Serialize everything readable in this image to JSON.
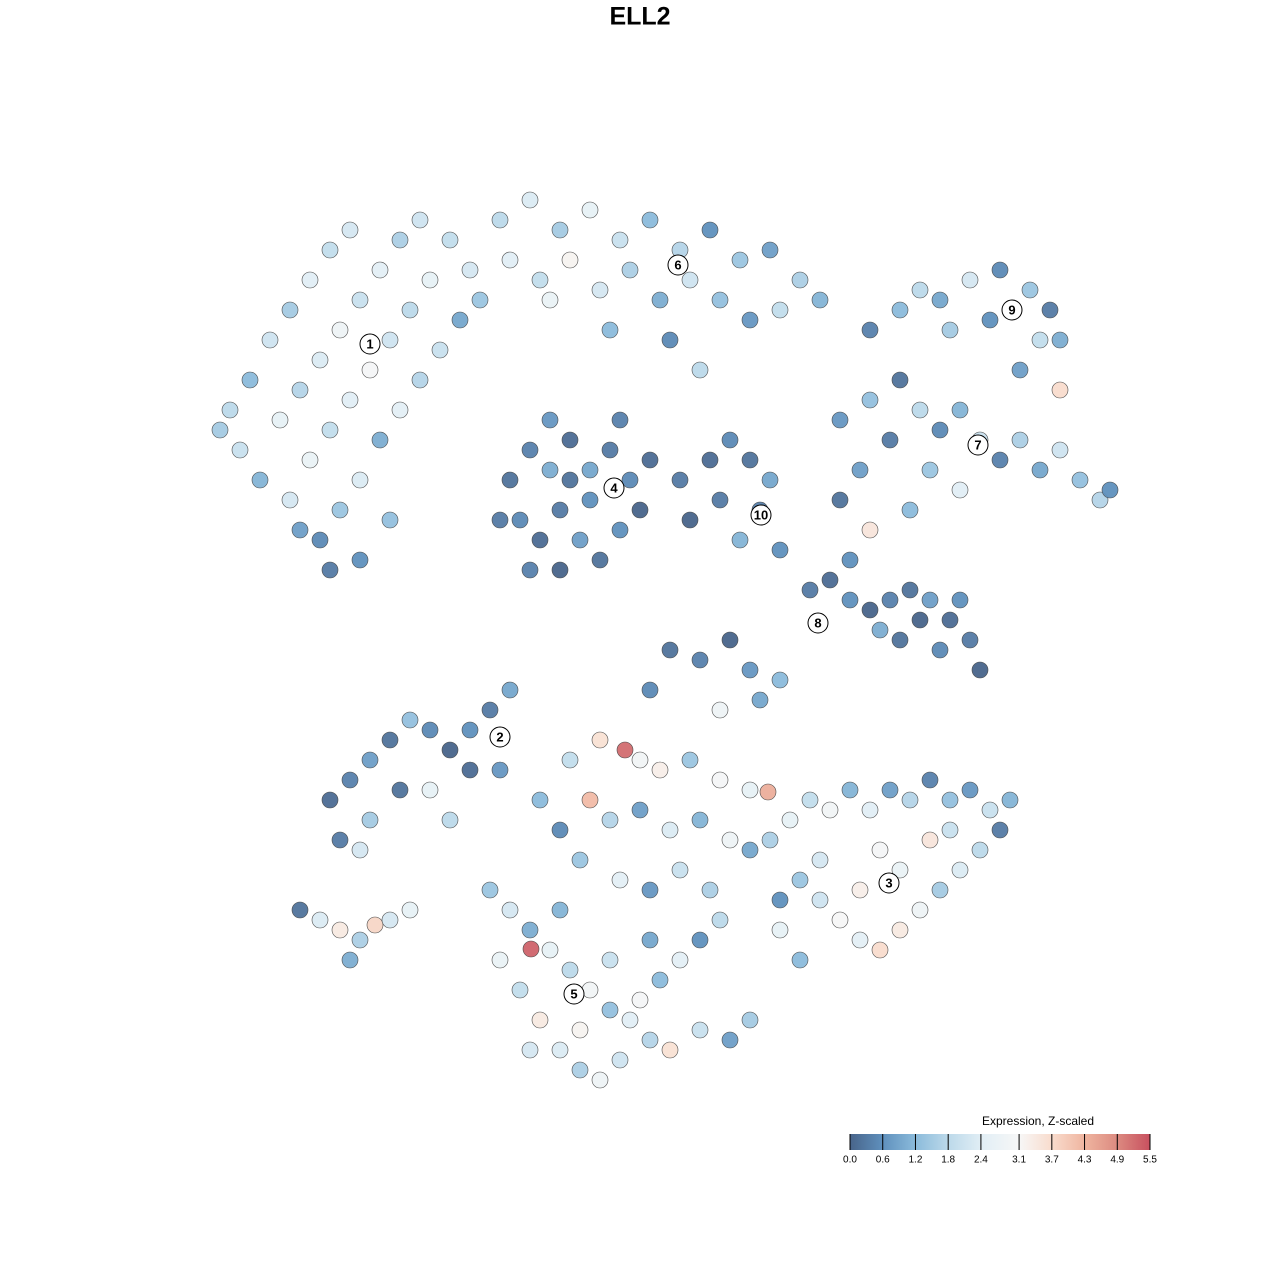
{
  "chart_data": {
    "type": "scatter",
    "title": "ELL2",
    "xlim": [
      0,
      100
    ],
    "ylim": [
      0,
      100
    ],
    "x": [
      3,
      5,
      7,
      9,
      11,
      13,
      15,
      4,
      8,
      10,
      12,
      14,
      16,
      18,
      20,
      6,
      9,
      11,
      13,
      15,
      17,
      19,
      21,
      23,
      12,
      14,
      16,
      18,
      20,
      22,
      24,
      26,
      13,
      16,
      19,
      10,
      2,
      27,
      25,
      22,
      30,
      33,
      36,
      39,
      42,
      45,
      48,
      51,
      54,
      57,
      60,
      62,
      31,
      34,
      37,
      40,
      43,
      46,
      49,
      52,
      55,
      58,
      35,
      28,
      47,
      41,
      50,
      31,
      33,
      35,
      37,
      39,
      41,
      43,
      44,
      42,
      40,
      38,
      36,
      34,
      32,
      33,
      36,
      39,
      37,
      42,
      45,
      30,
      35,
      48,
      51,
      53,
      55,
      57,
      56,
      54,
      58,
      49,
      52,
      67,
      70,
      72,
      74,
      77,
      80,
      83,
      85,
      86,
      84,
      79,
      75,
      82,
      86,
      64,
      67,
      70,
      72,
      74,
      76,
      78,
      80,
      82,
      84,
      86,
      88,
      90,
      91,
      73,
      69,
      66,
      76,
      71,
      67,
      65,
      64,
      61,
      63,
      65,
      67,
      69,
      71,
      73,
      75,
      77,
      78,
      74,
      70,
      72,
      76,
      68,
      47,
      50,
      53,
      55,
      58,
      45,
      52,
      56,
      13,
      15,
      17,
      19,
      21,
      23,
      25,
      27,
      29,
      31,
      20,
      23,
      17,
      14,
      16,
      25,
      27,
      30,
      10,
      12,
      14,
      16,
      17.5,
      19,
      21,
      15,
      57,
      59,
      61,
      63,
      65,
      67,
      69,
      71,
      73,
      75,
      77,
      79,
      81,
      80,
      78,
      76,
      74,
      72,
      70,
      68,
      66,
      64,
      62,
      60,
      58,
      66,
      70,
      68,
      62,
      73,
      75,
      60,
      58,
      29,
      31,
      33,
      35,
      37,
      39,
      41,
      43,
      45,
      47,
      50,
      53,
      55,
      30,
      32,
      34,
      36,
      38,
      40,
      42,
      44,
      46,
      48,
      50,
      52,
      33,
      38,
      41,
      45,
      36,
      37,
      40,
      42.5,
      44,
      46,
      49,
      52,
      55,
      56.8,
      39,
      41,
      44,
      47,
      50,
      53,
      55,
      38,
      42,
      45,
      48,
      51,
      36,
      34,
      33.1
    ],
    "y": [
      69,
      72,
      76,
      79,
      82,
      85,
      87,
      65,
      68,
      71,
      74,
      77,
      80,
      83,
      86,
      62,
      60,
      64,
      67,
      70,
      73,
      76,
      79,
      82,
      56,
      59,
      62,
      66,
      69,
      72,
      75,
      78,
      53,
      54,
      58,
      57,
      67,
      83,
      86,
      88,
      88,
      90,
      87,
      89,
      86,
      88,
      85,
      87,
      84,
      85,
      82,
      80,
      84,
      82,
      84,
      81,
      83,
      80,
      82,
      80,
      78,
      79,
      80,
      80,
      76,
      77,
      73,
      62,
      65,
      68,
      66,
      63,
      65,
      62,
      59,
      57,
      54,
      56,
      59,
      56,
      58,
      53,
      53,
      60,
      62,
      68,
      64,
      58,
      63,
      62,
      64,
      66,
      64,
      62,
      59,
      56,
      55,
      58,
      60,
      77,
      79,
      81,
      80,
      82,
      83,
      81,
      79,
      76,
      76,
      78,
      77,
      73,
      71,
      68,
      70,
      72,
      69,
      67,
      69,
      66,
      64,
      66,
      63,
      65,
      62,
      60,
      61,
      63,
      66,
      63,
      61,
      59,
      57,
      54,
      60,
      51,
      52,
      50,
      49,
      50,
      51,
      50,
      48,
      46,
      43,
      45,
      46,
      48,
      50,
      47,
      45,
      44,
      46,
      43,
      42,
      41,
      39,
      40,
      30,
      32,
      34,
      36,
      38,
      37,
      35,
      37,
      39,
      41,
      31,
      31,
      28,
      26,
      25,
      28,
      33,
      33,
      19,
      18,
      17,
      16,
      17.5,
      18,
      19,
      14,
      26,
      28,
      30,
      29,
      31,
      29,
      31,
      30,
      32,
      30,
      31,
      29,
      30,
      27,
      25,
      23,
      21,
      19,
      17,
      15,
      16,
      18,
      20,
      22,
      20,
      21,
      23,
      25,
      24,
      26,
      27,
      14,
      17,
      21,
      19,
      17,
      15,
      13,
      11,
      9,
      8,
      6,
      5,
      7,
      6,
      8,
      14,
      11,
      8,
      5,
      3,
      2,
      4,
      10,
      12,
      14,
      16,
      18,
      5,
      7,
      14,
      16,
      19,
      34,
      36,
      35,
      34,
      33,
      34,
      32,
      31,
      30.8,
      30,
      28,
      29,
      27,
      28,
      26,
      25,
      24,
      22,
      21,
      23,
      21,
      27,
      30,
      15.1
    ],
    "values": [
      1.8,
      1.2,
      2.1,
      1.5,
      2.4,
      1.9,
      2.2,
      2.0,
      2.6,
      1.7,
      2.3,
      2.8,
      2.0,
      2.5,
      1.6,
      1.1,
      2.2,
      2.7,
      1.9,
      2.4,
      3.0,
      2.1,
      1.8,
      2.6,
      0.5,
      1.4,
      2.3,
      1.0,
      2.5,
      1.7,
      2.0,
      0.9,
      0.3,
      0.6,
      1.3,
      0.8,
      1.5,
      2.2,
      1.9,
      2.1,
      1.8,
      2.3,
      1.5,
      2.6,
      2.0,
      1.2,
      1.7,
      0.6,
      1.4,
      0.8,
      1.6,
      1.1,
      2.4,
      1.9,
      3.2,
      2.2,
      1.6,
      1.0,
      2.1,
      1.3,
      0.7,
      1.9,
      2.7,
      1.4,
      0.5,
      1.2,
      1.8,
      0.2,
      0.4,
      0.7,
      0.1,
      0.9,
      0.3,
      0.5,
      0.0,
      0.6,
      0.2,
      0.8,
      0.3,
      0.1,
      0.5,
      0.4,
      0.0,
      0.6,
      0.2,
      0.4,
      0.1,
      0.3,
      1.0,
      0.3,
      0.1,
      0.5,
      0.2,
      0.9,
      0.4,
      1.1,
      0.6,
      0.0,
      0.3,
      0.4,
      1.2,
      1.8,
      0.9,
      2.2,
      0.5,
      1.4,
      0.3,
      1.0,
      1.9,
      0.6,
      1.5,
      0.8,
      3.7,
      0.7,
      1.3,
      0.2,
      1.8,
      0.5,
      1.1,
      2.0,
      0.4,
      1.6,
      0.9,
      2.1,
      1.3,
      1.7,
      0.6,
      1.4,
      0.3,
      0.8,
      2.4,
      1.2,
      3.5,
      0.6,
      0.2,
      0.3,
      0.1,
      0.6,
      0.0,
      0.4,
      0.2,
      0.8,
      0.1,
      0.3,
      0.0,
      0.5,
      0.2,
      0.0,
      0.6,
      1.0,
      0.2,
      0.4,
      0.0,
      0.7,
      1.2,
      0.5,
      2.8,
      0.9,
      0.1,
      0.4,
      0.8,
      0.2,
      1.3,
      0.5,
      0.0,
      0.6,
      0.3,
      0.9,
      0.2,
      2.6,
      1.5,
      0.3,
      2.2,
      1.8,
      0.1,
      0.7,
      0.2,
      2.3,
      3.4,
      1.6,
      3.8,
      2.2,
      2.6,
      1.0,
      1.6,
      2.6,
      1.9,
      2.9,
      1.1,
      2.4,
      0.8,
      1.7,
      0.4,
      1.3,
      0.7,
      2.0,
      1.1,
      0.3,
      1.8,
      2.3,
      1.5,
      2.8,
      3.4,
      3.7,
      2.5,
      3.1,
      2.1,
      1.4,
      0.6,
      3.3,
      2.7,
      3.0,
      2.2,
      3.5,
      2.0,
      1.2,
      2.6,
      1.4,
      2.2,
      1.0,
      2.6,
      1.8,
      2.9,
      1.3,
      2.4,
      1.7,
      3.6,
      2.0,
      0.8,
      1.5,
      2.7,
      1.9,
      3.4,
      2.3,
      1.6,
      2.8,
      2.1,
      3.0,
      1.2,
      2.5,
      0.6,
      1.8,
      2.2,
      3.2,
      2.0,
      0.9,
      1.1,
      1.9,
      3.6,
      5.2,
      2.9,
      3.3,
      1.4,
      3.0,
      2.6,
      4.4,
      4.2,
      1.7,
      0.8,
      2.3,
      1.1,
      2.8,
      0.9,
      1.4,
      2.5,
      0.7,
      2.0,
      1.6,
      0.5,
      1.2,
      5.3
    ],
    "clusters": [
      {
        "label": "1",
        "x": 17,
        "y": 75.6
      },
      {
        "label": "6",
        "x": 47.8,
        "y": 83.5
      },
      {
        "label": "9",
        "x": 81.2,
        "y": 79
      },
      {
        "label": "4",
        "x": 41.4,
        "y": 61.2
      },
      {
        "label": "10",
        "x": 56.1,
        "y": 58.5
      },
      {
        "label": "7",
        "x": 77.8,
        "y": 65.5
      },
      {
        "label": "8",
        "x": 61.8,
        "y": 47.7
      },
      {
        "label": "2",
        "x": 30,
        "y": 36.3
      },
      {
        "label": "3",
        "x": 68.9,
        "y": 21.7
      },
      {
        "label": "5",
        "x": 37.4,
        "y": 10.6
      }
    ],
    "colorbar": {
      "title": "Expression, Z-scaled",
      "lim": [
        0,
        5.5
      ],
      "ticks": [
        {
          "value": 0,
          "label": "0.0"
        },
        0.6,
        1.2,
        1.8,
        2.4,
        3.1,
        3.7,
        4.3,
        4.9,
        5.5
      ],
      "colors": [
        "#48648a",
        "#5f90bd",
        "#8bbbdb",
        "#bcd9ea",
        "#e1eef5",
        "#f7f7f7",
        "#f9dccd",
        "#efb5a0",
        "#dc8a80",
        "#c8505f"
      ]
    }
  }
}
